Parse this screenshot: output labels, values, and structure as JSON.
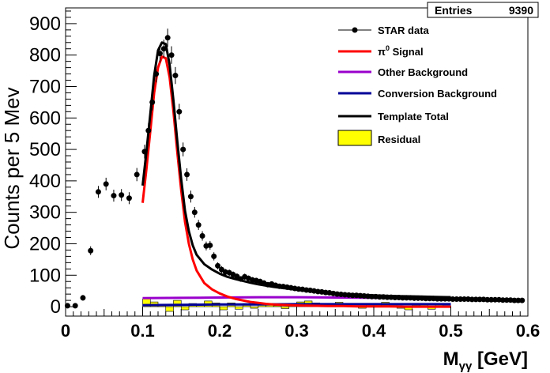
{
  "stats": {
    "label": "Entries",
    "value": "9390"
  },
  "chart_data": {
    "type": "scatter",
    "xlabel_main": "M",
    "xlabel_sub": "γγ",
    "xlabel_unit": " [GeV]",
    "ylabel": "Counts per 5 Mev",
    "xlim": [
      0,
      0.6
    ],
    "ylim": [
      -30,
      950
    ],
    "x_ticks": [
      0,
      0.1,
      0.2,
      0.3,
      0.4,
      0.5,
      0.6
    ],
    "x_tick_labels": [
      "0",
      "0.1",
      "0.2",
      "0.3",
      "0.4",
      "0.5",
      "0.6"
    ],
    "y_ticks": [
      0,
      100,
      200,
      300,
      400,
      500,
      600,
      700,
      800,
      900
    ],
    "y_tick_labels": [
      "0",
      "100",
      "200",
      "300",
      "400",
      "500",
      "600",
      "700",
      "800",
      "900"
    ],
    "legend": {
      "position": "top-right",
      "entries": [
        {
          "key": "data",
          "label": "STAR data",
          "color": "#000000",
          "style": "marker"
        },
        {
          "key": "signal",
          "label_main": "π",
          "label_sup": "0",
          "label_rest": " Signal",
          "color": "#ff0000",
          "style": "line"
        },
        {
          "key": "other",
          "label": "Other Background",
          "color": "#9900cc",
          "style": "line"
        },
        {
          "key": "conv",
          "label": "Conversion Background",
          "color": "#000099",
          "style": "line"
        },
        {
          "key": "total",
          "label": "Template Total",
          "color": "#000000",
          "style": "line"
        },
        {
          "key": "resid",
          "label": "Residual",
          "color": "#ffff00",
          "style": "box"
        }
      ]
    },
    "series": [
      {
        "key": "data",
        "x": [
          0.0025,
          0.0125,
          0.0225,
          0.0325,
          0.0425,
          0.0525,
          0.0625,
          0.0725,
          0.0825,
          0.0925,
          0.1025,
          0.1075,
          0.1125,
          0.1175,
          0.1225,
          0.1275,
          0.1325,
          0.1375,
          0.1425,
          0.1475,
          0.1525,
          0.1575,
          0.1625,
          0.1675,
          0.1725,
          0.1775,
          0.1825,
          0.1875,
          0.1925,
          0.1975,
          0.2025,
          0.2075,
          0.2125,
          0.2175,
          0.2225,
          0.2275,
          0.2325,
          0.2375,
          0.2425,
          0.2475,
          0.2525,
          0.2575,
          0.2625,
          0.2675,
          0.2725,
          0.2775,
          0.2825,
          0.2875,
          0.2925,
          0.2975,
          0.3025,
          0.3075,
          0.3125,
          0.3175,
          0.3225,
          0.3275,
          0.3325,
          0.3375,
          0.3425,
          0.3475,
          0.3525,
          0.3575,
          0.3625,
          0.3675,
          0.3725,
          0.3775,
          0.3825,
          0.3875,
          0.3925,
          0.3975,
          0.4025,
          0.4075,
          0.4125,
          0.4175,
          0.4225,
          0.4275,
          0.4325,
          0.4375,
          0.4425,
          0.4475,
          0.4525,
          0.4575,
          0.4625,
          0.4675,
          0.4725,
          0.4775,
          0.4825,
          0.4875,
          0.4925,
          0.4975,
          0.5025,
          0.5075,
          0.5125,
          0.5175,
          0.5225,
          0.5275,
          0.5325,
          0.5375,
          0.5425,
          0.5475,
          0.5525,
          0.5575,
          0.5625,
          0.5675,
          0.5725,
          0.5775,
          0.5825,
          0.5875,
          0.5925
        ],
        "y": [
          3,
          3,
          28,
          178,
          365,
          390,
          353,
          355,
          345,
          420,
          493,
          560,
          650,
          740,
          805,
          820,
          855,
          800,
          735,
          620,
          500,
          420,
          350,
          300,
          260,
          225,
          193,
          195,
          160,
          130,
          118,
          110,
          108,
          102,
          96,
          88,
          95,
          90,
          85,
          83,
          80,
          75,
          70,
          72,
          68,
          65,
          64,
          62,
          60,
          58,
          56,
          55,
          53,
          52,
          50,
          48,
          47,
          45,
          44,
          42,
          40,
          39,
          38,
          37,
          36,
          36,
          35,
          34,
          33,
          32,
          32,
          31,
          31,
          30,
          30,
          29,
          29,
          28,
          28,
          28,
          27,
          27,
          27,
          26,
          26,
          26,
          25,
          25,
          25,
          25,
          24,
          24,
          24,
          24,
          24,
          23,
          23,
          23,
          23,
          22,
          22,
          22,
          22,
          21,
          21,
          21,
          20,
          20,
          20
        ],
        "yerr": [
          6,
          6,
          9,
          14,
          19,
          20,
          19,
          19,
          19,
          21,
          22,
          24,
          26,
          27,
          28,
          29,
          29,
          28,
          27,
          25,
          22,
          20,
          19,
          17,
          16,
          15,
          14,
          14,
          13,
          11,
          11,
          10,
          10,
          10,
          10,
          9,
          10,
          9,
          9,
          9,
          9,
          9,
          8,
          8,
          8,
          8,
          8,
          8,
          8,
          8,
          7,
          7,
          7,
          7,
          7,
          7,
          7,
          7,
          7,
          6,
          6,
          6,
          6,
          6,
          6,
          6,
          6,
          6,
          6,
          6,
          6,
          6,
          6,
          5,
          5,
          5,
          5,
          5,
          5,
          5,
          5,
          5,
          5,
          5,
          5,
          5,
          5,
          5,
          5,
          5,
          5,
          5,
          5,
          5,
          5,
          5,
          5,
          5,
          5,
          5,
          5,
          5,
          5,
          5,
          5,
          5,
          4,
          4,
          4
        ]
      },
      {
        "key": "signal",
        "x": [
          0.1,
          0.105,
          0.11,
          0.115,
          0.12,
          0.125,
          0.13,
          0.135,
          0.14,
          0.145,
          0.15,
          0.155,
          0.16,
          0.165,
          0.17,
          0.18,
          0.19,
          0.2,
          0.21,
          0.22,
          0.23,
          0.24,
          0.25,
          0.26,
          0.27,
          0.28,
          0.29,
          0.3,
          0.32,
          0.34,
          0.36,
          0.38,
          0.4,
          0.42,
          0.44,
          0.46,
          0.48,
          0.5
        ],
        "y": [
          330,
          440,
          560,
          680,
          760,
          795,
          790,
          730,
          620,
          490,
          370,
          270,
          200,
          150,
          115,
          75,
          55,
          42,
          32,
          25,
          20,
          15,
          12,
          9,
          7,
          6,
          5,
          4,
          3,
          2,
          2,
          1,
          1,
          1,
          0,
          0,
          0,
          0
        ]
      },
      {
        "key": "other",
        "x": [
          0.1,
          0.15,
          0.2,
          0.25,
          0.3,
          0.35,
          0.4,
          0.45,
          0.5
        ],
        "y": [
          27,
          28,
          29,
          30,
          30,
          29,
          28,
          27,
          26
        ]
      },
      {
        "key": "conv",
        "x": [
          0.1,
          0.15,
          0.2,
          0.25,
          0.3,
          0.35,
          0.4,
          0.45,
          0.5
        ],
        "y": [
          5,
          6,
          7,
          7,
          8,
          8,
          8,
          8,
          8
        ]
      },
      {
        "key": "total",
        "x": [
          0.1,
          0.105,
          0.11,
          0.115,
          0.12,
          0.125,
          0.13,
          0.135,
          0.14,
          0.145,
          0.15,
          0.155,
          0.16,
          0.165,
          0.17,
          0.18,
          0.19,
          0.2,
          0.21,
          0.22,
          0.23,
          0.24,
          0.25,
          0.26,
          0.27,
          0.28,
          0.29,
          0.3,
          0.32,
          0.34,
          0.36,
          0.38,
          0.4,
          0.42,
          0.44,
          0.46,
          0.48,
          0.5
        ],
        "y": [
          385,
          495,
          615,
          735,
          815,
          840,
          835,
          770,
          655,
          525,
          405,
          305,
          240,
          195,
          165,
          135,
          118,
          105,
          95,
          88,
          82,
          76,
          71,
          67,
          63,
          60,
          57,
          54,
          48,
          44,
          41,
          38,
          36,
          34,
          33,
          32,
          31,
          30
        ]
      },
      {
        "key": "resid",
        "type": "histogram",
        "bin_width": 0.01,
        "x": [
          0.1,
          0.11,
          0.12,
          0.13,
          0.14,
          0.15,
          0.16,
          0.17,
          0.18,
          0.19,
          0.2,
          0.21,
          0.22,
          0.23,
          0.24,
          0.25,
          0.26,
          0.27,
          0.28,
          0.29,
          0.3,
          0.31,
          0.32,
          0.33,
          0.34,
          0.35,
          0.36,
          0.37,
          0.38,
          0.39,
          0.4,
          0.41,
          0.42,
          0.43,
          0.44,
          0.45,
          0.46,
          0.47,
          0.48,
          0.49
        ],
        "y": [
          25,
          15,
          5,
          -15,
          20,
          -10,
          10,
          8,
          18,
          12,
          -10,
          12,
          -8,
          10,
          -5,
          6,
          10,
          3,
          -6,
          5,
          15,
          18,
          12,
          8,
          5,
          14,
          10,
          3,
          -5,
          10,
          8,
          14,
          6,
          -5,
          -10,
          5,
          10,
          -8,
          6,
          3
        ]
      }
    ]
  }
}
